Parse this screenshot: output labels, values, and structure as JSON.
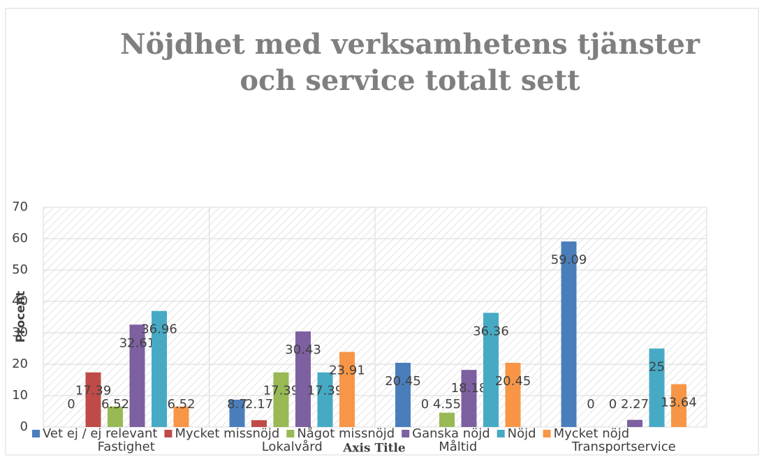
{
  "chart_data": {
    "type": "bar",
    "title": "Nöjdhet med verksamhetens tjänster och service totalt sett",
    "x_label": "Axis Title",
    "y_label": "Procent",
    "categories": [
      "Fastighet",
      "Lokalvård",
      "Måltid",
      "Transportservice"
    ],
    "series": [
      {
        "name": "Vet ej / ej relevant",
        "color": "#4a7ebb",
        "values": [
          0,
          8.7,
          20.45,
          59.09
        ]
      },
      {
        "name": "Mycket missnöjd",
        "color": "#be4b48",
        "values": [
          17.39,
          2.17,
          0,
          0
        ]
      },
      {
        "name": "Något missnöjd",
        "color": "#98b954",
        "values": [
          6.52,
          17.39,
          4.55,
          0
        ]
      },
      {
        "name": "Ganska nöjd",
        "color": "#7d60a0",
        "values": [
          32.61,
          30.43,
          18.18,
          2.27
        ]
      },
      {
        "name": "Nöjd",
        "color": "#46aac5",
        "values": [
          36.96,
          17.39,
          36.36,
          25
        ]
      },
      {
        "name": "Mycket nöjd",
        "color": "#f79646",
        "values": [
          6.52,
          23.91,
          20.45,
          13.64
        ]
      }
    ],
    "ylim": [
      0,
      70
    ],
    "yticks": [
      0,
      10,
      20,
      30,
      40,
      50,
      60,
      70
    ],
    "grid": true,
    "legend": "bottom"
  }
}
